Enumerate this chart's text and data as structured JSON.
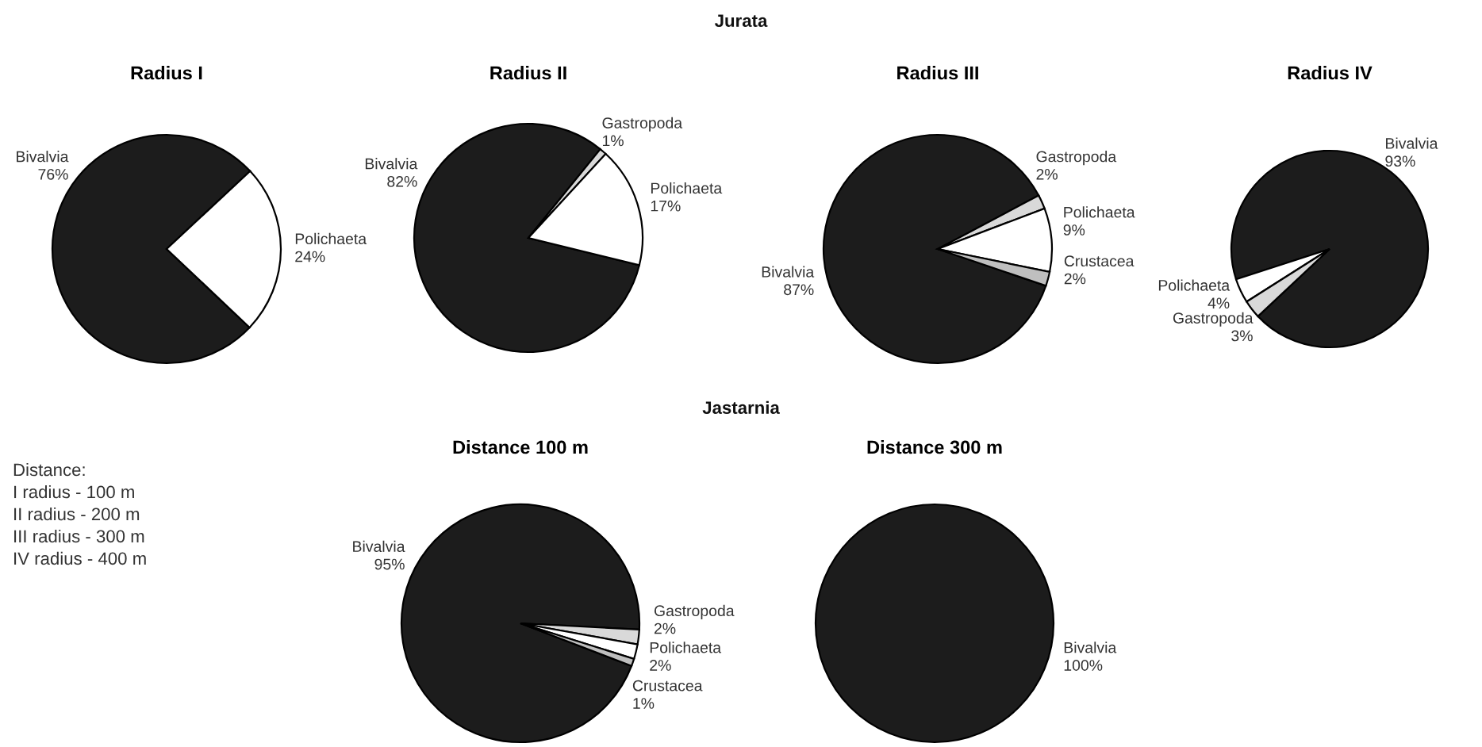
{
  "chart_data": [
    {
      "type": "pie",
      "title": "Radius I",
      "annotations": [
        "Jurata"
      ],
      "categories": [
        "Bivalvia",
        "Polichaeta"
      ],
      "values": [
        76,
        24
      ],
      "value_labels": [
        "76%",
        "24%"
      ],
      "colors": [
        "#1c1c1c",
        "#ffffff"
      ]
    },
    {
      "type": "pie",
      "title": "Radius II",
      "categories": [
        "Bivalvia",
        "Gastropoda",
        "Polichaeta"
      ],
      "values": [
        82,
        1,
        17
      ],
      "value_labels": [
        "82%",
        "1%",
        "17%"
      ],
      "colors": [
        "#1c1c1c",
        "#d9d9d9",
        "#ffffff"
      ]
    },
    {
      "type": "pie",
      "title": "Radius III",
      "categories": [
        "Bivalvia",
        "Gastropoda",
        "Polichaeta",
        "Crustacea"
      ],
      "values": [
        87,
        2,
        9,
        2
      ],
      "value_labels": [
        "87%",
        "2%",
        "9%",
        "2%"
      ],
      "colors": [
        "#1c1c1c",
        "#d9d9d9",
        "#ffffff",
        "#bfbfbf"
      ]
    },
    {
      "type": "pie",
      "title": "Radius IV",
      "categories": [
        "Bivalvia",
        "Polichaeta",
        "Gastropoda"
      ],
      "values": [
        93,
        4,
        3
      ],
      "value_labels": [
        "93%",
        "4%",
        "3%"
      ],
      "colors": [
        "#1c1c1c",
        "#ffffff",
        "#d9d9d9"
      ]
    },
    {
      "type": "pie",
      "title": "Distance 100 m",
      "annotations": [
        "Jastarnia",
        "Distance:\nI radius - 100 m\nII radius - 200 m\nIII radius - 300 m\nIV radius - 400 m"
      ],
      "categories": [
        "Bivalvia",
        "Gastropoda",
        "Polichaeta",
        "Crustacea"
      ],
      "values": [
        95,
        2,
        2,
        1
      ],
      "value_labels": [
        "95%",
        "2%",
        "2%",
        "1%"
      ],
      "colors": [
        "#1c1c1c",
        "#d9d9d9",
        "#ffffff",
        "#bfbfbf"
      ]
    },
    {
      "type": "pie",
      "title": "Distance 300 m",
      "categories": [
        "Bivalvia"
      ],
      "values": [
        100
      ],
      "value_labels": [
        "100%"
      ],
      "colors": [
        "#1c1c1c"
      ]
    }
  ]
}
